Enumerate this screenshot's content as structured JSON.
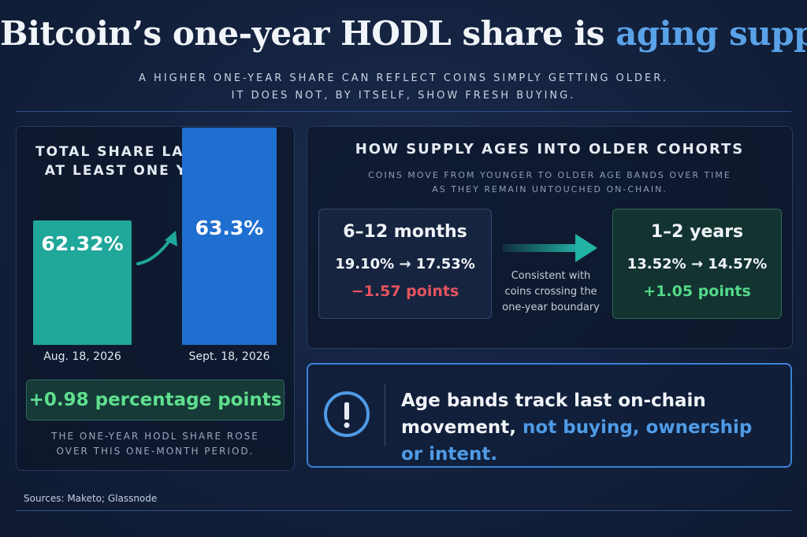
{
  "title": {
    "main": "Bitcoin’s one-year HODL share is",
    "accent": "aging supply"
  },
  "subtitle": {
    "line1": "A higher one-year share can reflect coins simply getting older.",
    "line2": "It does not, by itself, show fresh buying."
  },
  "left_panel": {
    "heading_line1": "Total share last moved",
    "heading_line2": "at least one year ago",
    "bars": [
      {
        "date": "Aug. 18, 2026",
        "value_label": "62.32%",
        "value": 62.32,
        "color": "#1fa79a"
      },
      {
        "date": "Sept. 18, 2026",
        "value_label": "63.3%",
        "value": 63.3,
        "color": "#1f6fd0"
      }
    ],
    "delta": "+0.98 percentage points",
    "caption_line1": "The one-year HODL share rose",
    "caption_line2": "over this one-month period."
  },
  "right_panel": {
    "heading": "How supply ages into older cohorts",
    "sub_line1": "Coins move from younger to older age bands over time",
    "sub_line2": "as they remain untouched on-chain.",
    "from_cohort": {
      "name": "6–12 months",
      "range": "19.10% → 17.53%",
      "change": "−1.57 points",
      "change_color": "#e5535f"
    },
    "note_line1": "Consistent with",
    "note_line2": "coins crossing the",
    "note_line3": "one-year boundary",
    "to_cohort": {
      "name": "1–2 years",
      "range": "13.52% → 14.57%",
      "change": "+1.05 points",
      "change_color": "#55d98a"
    }
  },
  "callout": {
    "icon": "exclamation-circle-icon",
    "text_line1": "Age bands track last on-chain",
    "text_line2_plain": "movement,",
    "text_line2_highlight": "not buying, ownership or intent."
  },
  "sources": "Sources: Maketo; Glassnode"
}
